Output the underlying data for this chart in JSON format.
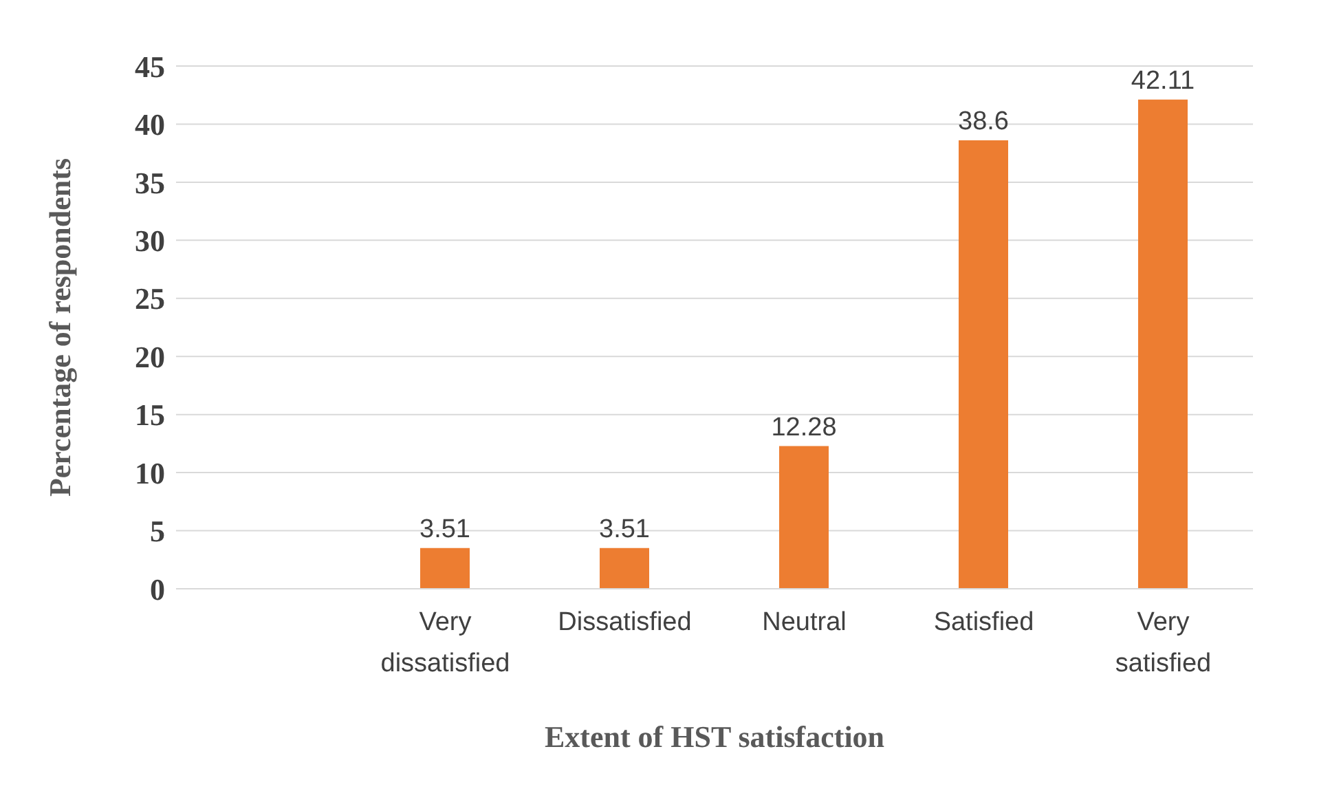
{
  "chart_data": {
    "type": "bar",
    "xlabel": "Extent of HST satisfaction",
    "ylabel": "Percentage of respondents",
    "categories": [
      null,
      "Very dissatisfied",
      "Dissatisfied",
      "Neutral",
      "Satisfied",
      "Very satisfied"
    ],
    "values": [
      null,
      3.51,
      3.51,
      12.28,
      38.6,
      42.11
    ],
    "color": "#ed7d31",
    "ylim": [
      0,
      45
    ],
    "yticks": [
      0,
      5,
      10,
      15,
      20,
      25,
      30,
      35,
      40,
      45
    ],
    "grid": "y",
    "data_labels": true
  }
}
